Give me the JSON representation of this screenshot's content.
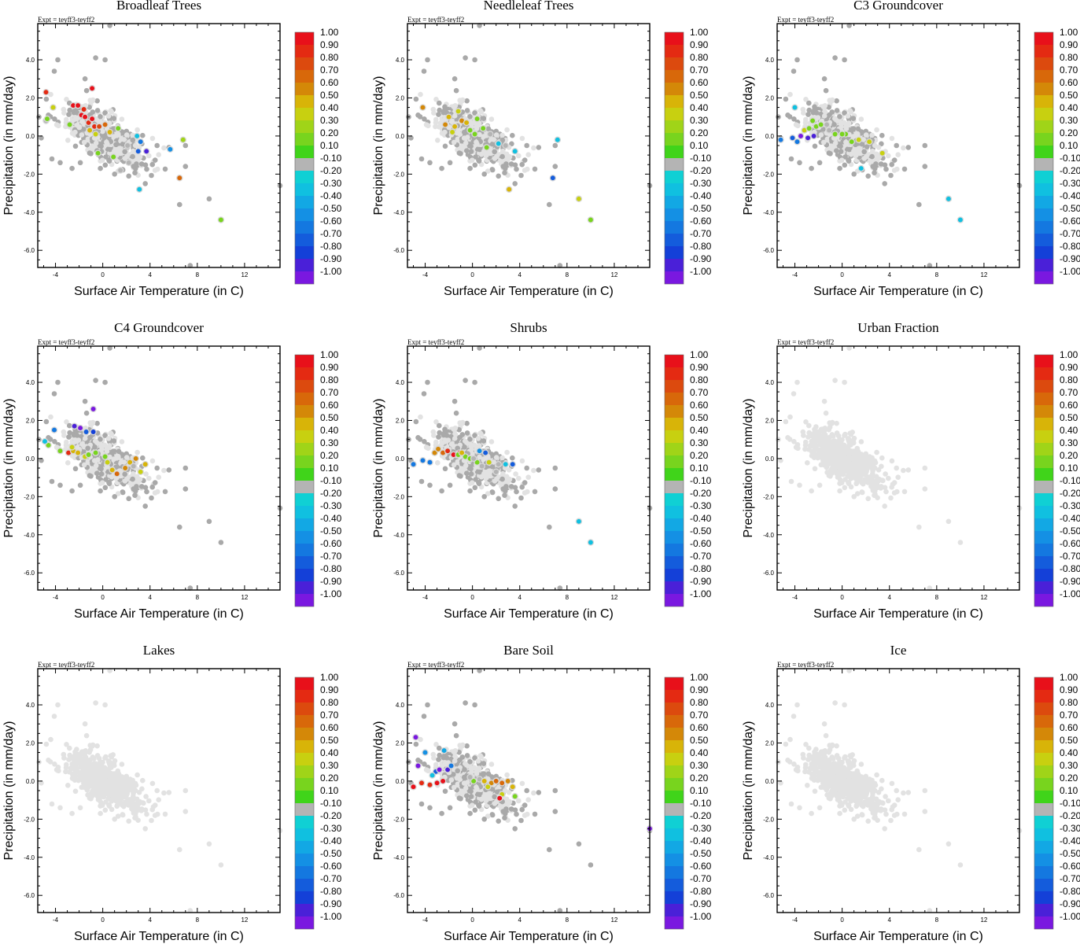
{
  "figure": {
    "expt_label": "Expt = teyff3-teyff2",
    "xlabel": "Surface Air Temperature (in C)",
    "ylabel": "Precipitation (in mm/day)",
    "xticks": [
      "-4",
      "0",
      "4",
      "8",
      "12"
    ],
    "yticks": [
      "4.0",
      "2.0",
      "0.0",
      "-2.0",
      "-4.0",
      "-6.0"
    ],
    "colorbar": {
      "labels": [
        "1.00",
        "0.90",
        "0.80",
        "0.70",
        "0.60",
        "0.50",
        "0.40",
        "0.30",
        "0.20",
        "0.10",
        "-0.10",
        "-0.20",
        "-0.30",
        "-0.40",
        "-0.50",
        "-0.60",
        "-0.70",
        "-0.80",
        "-0.90",
        "-1.00"
      ],
      "colors": [
        "#e8101a",
        "#e42a12",
        "#dc4a0e",
        "#d8680a",
        "#d48808",
        "#d8b408",
        "#c8d010",
        "#a0d418",
        "#78d41e",
        "#40d41a",
        "#b4b4b4",
        "#10d0d4",
        "#10c0e0",
        "#12a8e4",
        "#1490e4",
        "#1478e0",
        "#145cdc",
        "#1440d8",
        "#4a20d8",
        "#7a18e0"
      ]
    }
  },
  "chart_data": [
    {
      "type": "scatter",
      "title": "Broadleaf Trees",
      "xlabel": "Surface Air Temperature (in C)",
      "ylabel": "Precipitation (in mm/day)",
      "xlim": [
        -5.5,
        15
      ],
      "ylim": [
        -6.9,
        5.9
      ],
      "colored_points": [
        [
          -4.8,
          2.3,
          0.8
        ],
        [
          -4.8,
          0.8,
          0.1
        ],
        [
          -4.2,
          1.5,
          0.3
        ],
        [
          -4.7,
          0.9,
          0.2
        ],
        [
          -2.5,
          1.6,
          0.9
        ],
        [
          -2.1,
          1.6,
          0.9
        ],
        [
          -1.8,
          1.1,
          0.9
        ],
        [
          -1.5,
          1.0,
          0.95
        ],
        [
          -1.2,
          0.7,
          0.85
        ],
        [
          -0.9,
          0.9,
          0.9
        ],
        [
          -0.7,
          0.5,
          0.8
        ],
        [
          -0.9,
          2.5,
          0.9
        ],
        [
          -1.6,
          1.4,
          0.8
        ],
        [
          -0.3,
          0.5,
          0.75
        ],
        [
          0.2,
          0.6,
          0.7
        ],
        [
          -1.1,
          0.3,
          0.5
        ],
        [
          -0.6,
          0.1,
          0.3
        ],
        [
          0.6,
          0.2,
          0.4
        ],
        [
          -0.4,
          -0.9,
          0.2
        ],
        [
          1.3,
          0.4,
          0.2
        ],
        [
          2.1,
          -0.5,
          0.1
        ],
        [
          2.2,
          -1.4,
          0.1
        ],
        [
          1.5,
          -1.8,
          0.1
        ],
        [
          2.9,
          0.0,
          -0.3
        ],
        [
          3.2,
          -0.3,
          -0.5
        ],
        [
          3.7,
          -0.8,
          -0.85
        ],
        [
          3.0,
          -0.8,
          -0.7
        ],
        [
          5.7,
          -0.7,
          -0.4
        ],
        [
          3.1,
          -2.8,
          -0.3
        ],
        [
          6.5,
          -2.2,
          0.7
        ],
        [
          6.8,
          -0.2,
          0.25
        ],
        [
          10.0,
          -4.4,
          0.15
        ],
        [
          -2.8,
          0.6,
          0.2
        ],
        [
          0.9,
          -1.1,
          0.15
        ]
      ]
    },
    {
      "type": "scatter",
      "title": "Needleleaf Trees",
      "xlabel": "Surface Air Temperature (in C)",
      "ylabel": "Precipitation (in mm/day)",
      "xlim": [
        -5.5,
        15
      ],
      "ylim": [
        -6.9,
        5.9
      ],
      "colored_points": [
        [
          -4.2,
          1.5,
          0.6
        ],
        [
          -2.3,
          0.6,
          0.55
        ],
        [
          -2.0,
          1.0,
          0.5
        ],
        [
          -1.5,
          0.5,
          0.4
        ],
        [
          -1.2,
          1.3,
          0.3
        ],
        [
          -0.9,
          0.8,
          0.6
        ],
        [
          -0.5,
          0.7,
          0.45
        ],
        [
          -0.2,
          0.3,
          0.2
        ],
        [
          0.4,
          0.9,
          0.15
        ],
        [
          0.9,
          0.4,
          0.2
        ],
        [
          1.5,
          0.1,
          0.1
        ],
        [
          1.2,
          -0.6,
          0.15
        ],
        [
          2.2,
          -0.4,
          -0.2
        ],
        [
          2.8,
          -0.5,
          0.1
        ],
        [
          3.6,
          -0.8,
          -0.3
        ],
        [
          3.1,
          -2.8,
          0.4
        ],
        [
          7.2,
          -0.2,
          -0.25
        ],
        [
          6.8,
          -2.2,
          -0.7
        ],
        [
          9.0,
          -3.3,
          0.3
        ],
        [
          10.0,
          -4.4,
          0.2
        ],
        [
          -1.7,
          0.2,
          0.3
        ],
        [
          0.2,
          0.1,
          0.15
        ]
      ]
    },
    {
      "type": "scatter",
      "title": "C3 Groundcover",
      "xlabel": "Surface Air Temperature (in C)",
      "ylabel": "Precipitation (in mm/day)",
      "xlim": [
        -5.5,
        15
      ],
      "ylim": [
        -6.9,
        5.9
      ],
      "colored_points": [
        [
          -4.0,
          1.5,
          -0.3
        ],
        [
          -5.2,
          -0.2,
          -0.5
        ],
        [
          -4.2,
          -0.1,
          -0.6
        ],
        [
          -3.8,
          -0.3,
          -0.55
        ],
        [
          -3.5,
          0.0,
          -0.9
        ],
        [
          -2.9,
          -0.1,
          -0.85
        ],
        [
          -2.4,
          0.0,
          -0.8
        ],
        [
          -3.2,
          0.3,
          0.3
        ],
        [
          -2.8,
          0.4,
          0.2
        ],
        [
          -2.2,
          0.5,
          0.15
        ],
        [
          -1.8,
          0.6,
          0.2
        ],
        [
          -1.3,
          0.6,
          0.1
        ],
        [
          -1.1,
          0.3,
          0.1
        ],
        [
          -0.6,
          0.1,
          0.15
        ],
        [
          0.3,
          0.1,
          0.15
        ],
        [
          0.8,
          -0.3,
          0.2
        ],
        [
          1.4,
          -0.2,
          0.3
        ],
        [
          2.3,
          -0.3,
          0.3
        ],
        [
          3.4,
          -0.9,
          0.3
        ],
        [
          1.6,
          -1.7,
          -0.2
        ],
        [
          9.0,
          -3.3,
          -0.25
        ],
        [
          10.0,
          -4.4,
          -0.3
        ],
        [
          -2.5,
          0.8,
          0.15
        ],
        [
          0.0,
          0.1,
          0.2
        ]
      ]
    },
    {
      "type": "scatter",
      "title": "C4 Groundcover",
      "xlabel": "Surface Air Temperature (in C)",
      "ylabel": "Precipitation (in mm/day)",
      "xlim": [
        -5.5,
        15
      ],
      "ylim": [
        -6.9,
        5.9
      ],
      "colored_points": [
        [
          -4.1,
          1.5,
          -0.5
        ],
        [
          -4.6,
          0.7,
          0.2
        ],
        [
          -4.9,
          0.9,
          -0.3
        ],
        [
          -2.4,
          1.7,
          -0.8
        ],
        [
          -1.9,
          1.6,
          -0.9
        ],
        [
          -1.4,
          1.4,
          -0.7
        ],
        [
          -0.8,
          1.4,
          -0.75
        ],
        [
          -0.8,
          2.6,
          -0.95
        ],
        [
          -2.9,
          0.3,
          0.8
        ],
        [
          -2.5,
          0.4,
          0.5
        ],
        [
          -2.1,
          0.3,
          0.4
        ],
        [
          -1.5,
          0.1,
          0.3
        ],
        [
          -1.2,
          0.2,
          0.15
        ],
        [
          -0.6,
          0.3,
          0.2
        ],
        [
          0.2,
          0.1,
          0.15
        ],
        [
          0.4,
          -0.2,
          0.3
        ],
        [
          0.8,
          -0.6,
          0.5
        ],
        [
          1.2,
          -0.8,
          0.7
        ],
        [
          1.9,
          -0.5,
          0.55
        ],
        [
          2.3,
          -0.2,
          0.4
        ],
        [
          2.8,
          0.0,
          0.6
        ],
        [
          3.2,
          -0.7,
          0.3
        ],
        [
          3.6,
          -0.3,
          0.5
        ],
        [
          2.6,
          -0.4,
          0.1
        ],
        [
          -2.6,
          0.6,
          0.3
        ],
        [
          -3.6,
          0.4,
          0.2
        ]
      ]
    },
    {
      "type": "scatter",
      "title": "Shrubs",
      "xlabel": "Surface Air Temperature (in C)",
      "ylabel": "Precipitation (in mm/day)",
      "xlim": [
        -5.5,
        15
      ],
      "ylim": [
        -6.9,
        5.9
      ],
      "colored_points": [
        [
          -5.0,
          -0.3,
          -0.5
        ],
        [
          -4.2,
          -0.1,
          -0.55
        ],
        [
          -3.6,
          -0.2,
          -0.5
        ],
        [
          -3.2,
          0.3,
          0.6
        ],
        [
          -2.9,
          0.5,
          0.55
        ],
        [
          -2.5,
          0.3,
          0.7
        ],
        [
          -2.1,
          0.4,
          0.85
        ],
        [
          -1.6,
          0.2,
          0.9
        ],
        [
          -1.1,
          0.3,
          0.8
        ],
        [
          -0.6,
          0.1,
          0.2
        ],
        [
          -0.2,
          0.0,
          0.15
        ],
        [
          0.4,
          -0.2,
          0.15
        ],
        [
          0.8,
          -0.4,
          0.1
        ],
        [
          1.1,
          0.3,
          -0.7
        ],
        [
          1.4,
          -0.2,
          0.3
        ],
        [
          2.2,
          -0.3,
          0.1
        ],
        [
          2.8,
          -0.3,
          -0.3
        ],
        [
          2.0,
          -0.7,
          0.1
        ],
        [
          0.6,
          0.4,
          -0.45
        ],
        [
          -1.2,
          0.2,
          0.2
        ],
        [
          3.4,
          -0.3,
          -0.6
        ],
        [
          9.0,
          -3.3,
          -0.3
        ],
        [
          10.0,
          -4.4,
          -0.25
        ],
        [
          -0.9,
          0.3,
          0.4
        ],
        [
          0.1,
          0.0,
          0.1
        ]
      ]
    },
    {
      "type": "scatter",
      "title": "Urban Fraction",
      "xlabel": "Surface Air Temperature (in C)",
      "ylabel": "Precipitation (in mm/day)",
      "xlim": [
        -5.5,
        15
      ],
      "ylim": [
        -6.9,
        5.9
      ],
      "colored_points": []
    },
    {
      "type": "scatter",
      "title": "Lakes",
      "xlabel": "Surface Air Temperature (in C)",
      "ylabel": "Precipitation (in mm/day)",
      "xlim": [
        -5.5,
        15
      ],
      "ylim": [
        -6.9,
        5.9
      ],
      "colored_points": []
    },
    {
      "type": "scatter",
      "title": "Bare Soil",
      "xlabel": "Surface Air Temperature (in C)",
      "ylabel": "Precipitation (in mm/day)",
      "xlim": [
        -5.5,
        15
      ],
      "ylim": [
        -6.9,
        5.9
      ],
      "colored_points": [
        [
          -4.8,
          2.3,
          -0.9
        ],
        [
          -4.6,
          0.8,
          -0.9
        ],
        [
          -5.0,
          -0.3,
          0.9
        ],
        [
          -4.3,
          -0.1,
          0.85
        ],
        [
          -3.6,
          -0.2,
          0.8
        ],
        [
          -3.0,
          -0.1,
          0.95
        ],
        [
          -2.5,
          0.0,
          0.9
        ],
        [
          -4.0,
          1.5,
          -0.4
        ],
        [
          -2.4,
          1.6,
          -0.35
        ],
        [
          -3.1,
          0.5,
          -0.6
        ],
        [
          -2.8,
          0.6,
          -0.9
        ],
        [
          -2.1,
          0.6,
          -0.85
        ],
        [
          -1.8,
          0.8,
          -0.5
        ],
        [
          -3.4,
          0.3,
          -0.3
        ],
        [
          0.1,
          0.0,
          0.15
        ],
        [
          0.6,
          0.1,
          0.1
        ],
        [
          1.0,
          0.0,
          0.5
        ],
        [
          1.6,
          -0.1,
          0.6
        ],
        [
          2.0,
          0.0,
          0.65
        ],
        [
          2.5,
          -0.1,
          0.7
        ],
        [
          3.0,
          0.0,
          0.6
        ],
        [
          3.4,
          -0.3,
          0.5
        ],
        [
          2.5,
          -0.7,
          0.3
        ],
        [
          2.3,
          -0.9,
          0.95
        ],
        [
          3.6,
          -0.8,
          0.2
        ],
        [
          15.0,
          -2.5,
          -0.9
        ],
        [
          -0.2,
          0.2,
          0.1
        ],
        [
          1.3,
          -0.3,
          0.3
        ]
      ]
    },
    {
      "type": "scatter",
      "title": "Ice",
      "xlabel": "Surface Air Temperature (in C)",
      "ylabel": "Precipitation (in mm/day)",
      "xlim": [
        -5.5,
        15
      ],
      "ylim": [
        -6.9,
        5.9
      ],
      "colored_points": []
    }
  ]
}
